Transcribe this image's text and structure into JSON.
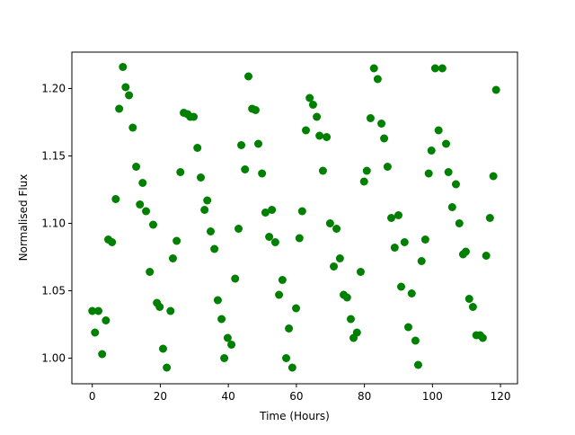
{
  "chart_data": {
    "type": "scatter",
    "xlabel": "Time (Hours)",
    "ylabel": "Normalised Flux",
    "x": [
      0,
      0.8,
      1.8,
      2.9,
      4.0,
      4.7,
      5.8,
      6.9,
      7.9,
      9.0,
      9.8,
      10.8,
      11.9,
      12.9,
      14.0,
      14.8,
      15.8,
      16.9,
      17.9,
      19.0,
      19.8,
      20.8,
      21.9,
      23.0,
      23.7,
      24.8,
      25.9,
      26.9,
      28.0,
      28.8,
      29.8,
      30.9,
      31.9,
      33.0,
      33.8,
      34.8,
      35.9,
      36.9,
      38.0,
      38.8,
      39.8,
      40.9,
      42.0,
      43.0,
      43.8,
      44.9,
      45.9,
      47.0,
      48.0,
      48.8,
      49.9,
      50.9,
      52.0,
      52.8,
      53.8,
      54.9,
      55.9,
      57.0,
      57.8,
      58.8,
      59.9,
      60.9,
      61.7,
      62.8,
      63.9,
      64.9,
      66.0,
      66.8,
      67.8,
      68.9,
      69.9,
      71.0,
      71.8,
      72.8,
      73.9,
      74.9,
      76.0,
      76.8,
      77.8,
      78.9,
      79.9,
      80.7,
      81.8,
      82.8,
      83.9,
      85.0,
      85.8,
      86.8,
      87.9,
      88.9,
      90.0,
      90.8,
      91.8,
      92.9,
      93.9,
      95.0,
      95.8,
      96.8,
      97.9,
      98.9,
      99.7,
      100.8,
      101.8,
      102.9,
      104.0,
      104.7,
      105.8,
      106.9,
      107.9,
      109.0,
      109.8,
      110.8,
      111.9,
      112.9,
      114.0,
      114.8,
      115.8,
      116.9,
      117.9,
      118.7
    ],
    "series": [
      {
        "color": "#008000",
        "values": [
          1.035,
          1.019,
          1.035,
          1.003,
          1.028,
          1.088,
          1.086,
          1.118,
          1.185,
          1.216,
          1.201,
          1.195,
          1.171,
          1.142,
          1.114,
          1.13,
          1.109,
          1.064,
          1.099,
          1.041,
          1.038,
          1.007,
          0.993,
          1.035,
          1.074,
          1.087,
          1.138,
          1.182,
          1.181,
          1.179,
          1.179,
          1.156,
          1.134,
          1.11,
          1.117,
          1.094,
          1.081,
          1.043,
          1.029,
          1.0,
          1.015,
          1.01,
          1.059,
          1.096,
          1.158,
          1.14,
          1.209,
          1.185,
          1.184,
          1.159,
          1.137,
          1.108,
          1.09,
          1.11,
          1.086,
          1.047,
          1.058,
          1.0,
          1.022,
          0.993,
          1.037,
          1.089,
          1.109,
          1.169,
          1.193,
          1.188,
          1.179,
          1.165,
          1.139,
          1.164,
          1.1,
          1.068,
          1.096,
          1.074,
          1.047,
          1.045,
          1.029,
          1.015,
          1.019,
          1.064,
          1.131,
          1.139,
          1.178,
          1.215,
          1.207,
          1.174,
          1.163,
          1.142,
          1.104,
          1.082,
          1.106,
          1.053,
          1.086,
          1.023,
          1.048,
          1.013,
          0.995,
          1.072,
          1.088,
          1.137,
          1.154,
          1.215,
          1.169,
          1.215,
          1.159,
          1.138,
          1.112,
          1.129,
          1.1,
          1.077,
          1.079,
          1.044,
          1.038,
          1.017,
          1.017,
          1.015,
          1.076,
          1.104,
          1.135,
          1.199
        ]
      }
    ],
    "xlim": [
      -6,
      125
    ],
    "ylim": [
      0.981,
      1.227
    ],
    "xticks": [
      0,
      20,
      40,
      60,
      80,
      100,
      120
    ],
    "yticks": [
      {
        "value": 1.0,
        "label": "1.00"
      },
      1.05,
      {
        "value": 1.1,
        "label": "1.10"
      },
      1.15,
      {
        "value": 1.2,
        "label": "1.20"
      }
    ]
  }
}
